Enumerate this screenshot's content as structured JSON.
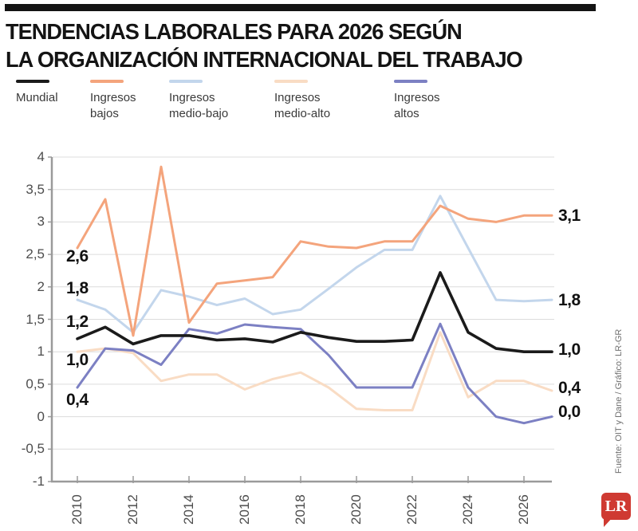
{
  "header": {
    "title_line1": "TENDENCIAS LABORALES PARA 2026 SEGÚN",
    "title_line2": "LA ORGANIZACIÓN INTERNACIONAL DEL TRABAJO"
  },
  "legend": {
    "items": [
      {
        "label": "Mundial",
        "color": "#1b1b1b"
      },
      {
        "label": "Ingresos\nbajos",
        "color": "#f4a47c"
      },
      {
        "label": "Ingresos\nmedio-bajo",
        "color": "#c3d6ec"
      },
      {
        "label": "Ingresos\nmedio-alto",
        "color": "#f9dcc4"
      },
      {
        "label": "Ingresos\naltos",
        "color": "#7c80c3"
      }
    ]
  },
  "chart_data": {
    "type": "line",
    "title": "Tendencias laborales para 2026 según la OIT",
    "x": [
      2010,
      2011,
      2012,
      2013,
      2014,
      2015,
      2016,
      2017,
      2018,
      2019,
      2020,
      2021,
      2022,
      2023,
      2024,
      2025,
      2026,
      2027
    ],
    "xlim": [
      2010,
      2027
    ],
    "ylim": [
      -1,
      4
    ],
    "grid": true,
    "legend_position": "top",
    "series": [
      {
        "name": "Ingresos medio-alto",
        "color": "#f9dcc4",
        "width": 3,
        "values": [
          1.0,
          1.05,
          0.98,
          0.55,
          0.65,
          0.65,
          0.42,
          0.58,
          0.68,
          0.45,
          0.12,
          0.1,
          0.1,
          1.3,
          0.3,
          0.55,
          0.55,
          0.4
        ]
      },
      {
        "name": "Ingresos medio-bajo",
        "color": "#c3d6ec",
        "width": 3,
        "values": [
          1.8,
          1.65,
          1.3,
          1.95,
          1.85,
          1.72,
          1.82,
          1.58,
          1.65,
          1.97,
          2.3,
          2.57,
          2.57,
          3.4,
          2.6,
          1.8,
          1.78,
          1.8
        ]
      },
      {
        "name": "Ingresos bajos",
        "color": "#f4a47c",
        "width": 3,
        "values": [
          2.6,
          3.35,
          1.25,
          3.85,
          1.45,
          2.05,
          2.1,
          2.15,
          2.7,
          2.62,
          2.6,
          2.7,
          2.7,
          3.25,
          3.05,
          3.0,
          3.1,
          3.1
        ]
      },
      {
        "name": "Ingresos altos",
        "color": "#7c80c3",
        "width": 3,
        "values": [
          0.45,
          1.05,
          1.02,
          0.8,
          1.35,
          1.28,
          1.42,
          1.38,
          1.35,
          0.95,
          0.45,
          0.45,
          0.45,
          1.43,
          0.45,
          0.0,
          -0.1,
          0.0
        ]
      },
      {
        "name": "Mundial",
        "color": "#1b1b1b",
        "width": 3.6,
        "values": [
          1.2,
          1.38,
          1.12,
          1.25,
          1.25,
          1.18,
          1.2,
          1.15,
          1.3,
          1.22,
          1.16,
          1.16,
          1.18,
          2.22,
          1.3,
          1.05,
          1.0,
          1.0
        ]
      }
    ],
    "x_ticks": [
      {
        "year": 2010,
        "label": "2010"
      },
      {
        "year": 2012,
        "label": "2012"
      },
      {
        "year": 2014,
        "label": "2014"
      },
      {
        "year": 2016,
        "label": "2016"
      },
      {
        "year": 2018,
        "label": "2018"
      },
      {
        "year": 2020,
        "label": "2020"
      },
      {
        "year": 2022,
        "label": "2022"
      },
      {
        "year": 2024,
        "label": "2024"
      },
      {
        "year": 2026,
        "label": "2026"
      }
    ],
    "y_ticks": [
      {
        "value": 4,
        "label": "4"
      },
      {
        "value": 3.5,
        "label": "3,5"
      },
      {
        "value": 3,
        "label": "3"
      },
      {
        "value": 2.5,
        "label": "2,5"
      },
      {
        "value": 2,
        "label": "2"
      },
      {
        "value": 1.5,
        "label": "1,5"
      },
      {
        "value": 1,
        "label": "1"
      },
      {
        "value": 0.5,
        "label": "0,5"
      },
      {
        "value": 0,
        "label": "0"
      },
      {
        "value": -0.5,
        "label": "-0,5"
      },
      {
        "value": -1,
        "label": "-1"
      }
    ],
    "annotations": {
      "left": [
        {
          "text": "2,6",
          "top": 322
        },
        {
          "text": "1,8",
          "top": 362
        },
        {
          "text": "1,2",
          "top": 404
        },
        {
          "text": "1,0",
          "top": 452
        },
        {
          "text": "0,4",
          "top": 502
        }
      ],
      "right": [
        {
          "text": "3,1",
          "top": 271
        },
        {
          "text": "1,8",
          "top": 377
        },
        {
          "text": "1,0",
          "top": 439
        },
        {
          "text": "0,4",
          "top": 487
        },
        {
          "text": "0,0",
          "top": 517
        }
      ]
    }
  },
  "source": {
    "credit": "Fuente: OIT y Dane / Gráfico: LR-GR"
  },
  "logo": {
    "text": "LR",
    "color": "#cf3a32"
  }
}
